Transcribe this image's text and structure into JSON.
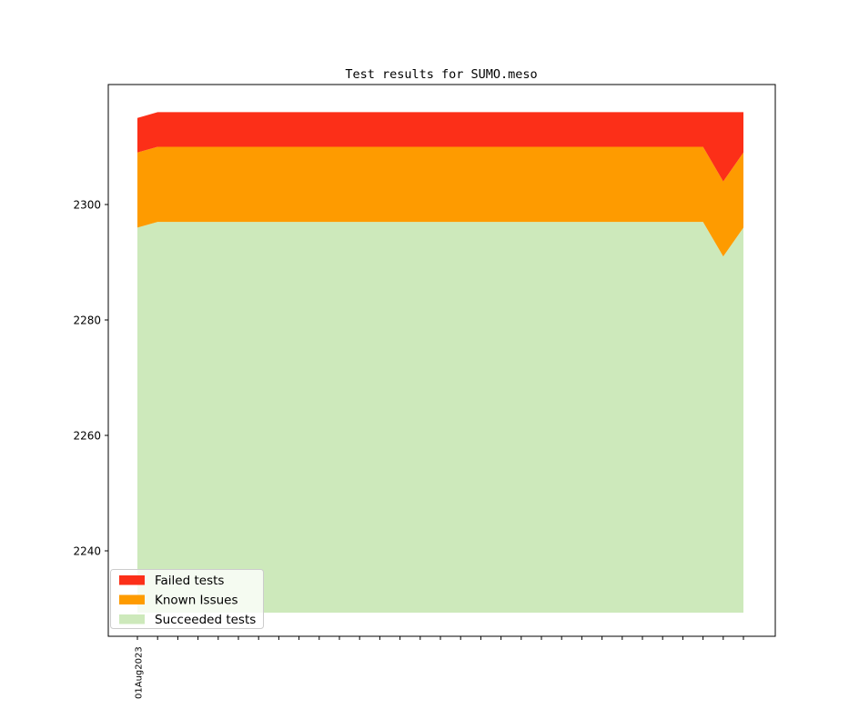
{
  "chart_data": {
    "type": "area",
    "stacked": true,
    "title": "Test results for SUMO.meso",
    "xlabel": "",
    "ylabel": "",
    "grid": false,
    "legend_position": "lower left",
    "yticks": [
      2240,
      2260,
      2280,
      2300
    ],
    "ylim": [
      2225,
      2321
    ],
    "stack_baseline": 2229,
    "x_ticks": {
      "count": 31,
      "labels_visible": [
        "01Aug2023"
      ]
    },
    "stack_order_bottom_to_top": [
      "Succeeded tests",
      "Known Issues",
      "Failed tests"
    ],
    "series": [
      {
        "name": "Failed tests",
        "color": "#fc2f18",
        "values": [
          6,
          6,
          6,
          6,
          6,
          6,
          6,
          6,
          6,
          6,
          6,
          6,
          6,
          6,
          6,
          6,
          6,
          6,
          6,
          6,
          6,
          6,
          6,
          6,
          6,
          6,
          6,
          6,
          6,
          12,
          7
        ]
      },
      {
        "name": "Known Issues",
        "color": "#fe9b00",
        "values": [
          13,
          13,
          13,
          13,
          13,
          13,
          13,
          13,
          13,
          13,
          13,
          13,
          13,
          13,
          13,
          13,
          13,
          13,
          13,
          13,
          13,
          13,
          13,
          13,
          13,
          13,
          13,
          13,
          13,
          13,
          13
        ]
      },
      {
        "name": "Succeeded tests",
        "color": "#cde9bb",
        "values": [
          2296,
          2297,
          2297,
          2297,
          2297,
          2297,
          2297,
          2297,
          2297,
          2297,
          2297,
          2297,
          2297,
          2297,
          2297,
          2297,
          2297,
          2297,
          2297,
          2297,
          2297,
          2297,
          2297,
          2297,
          2297,
          2297,
          2297,
          2297,
          2297,
          2291,
          2296
        ]
      }
    ]
  },
  "colors": {
    "axis": "#000000",
    "legend_border": "#cccccc",
    "legend_bg_alpha": "rgba(255,255,255,0.8)"
  }
}
